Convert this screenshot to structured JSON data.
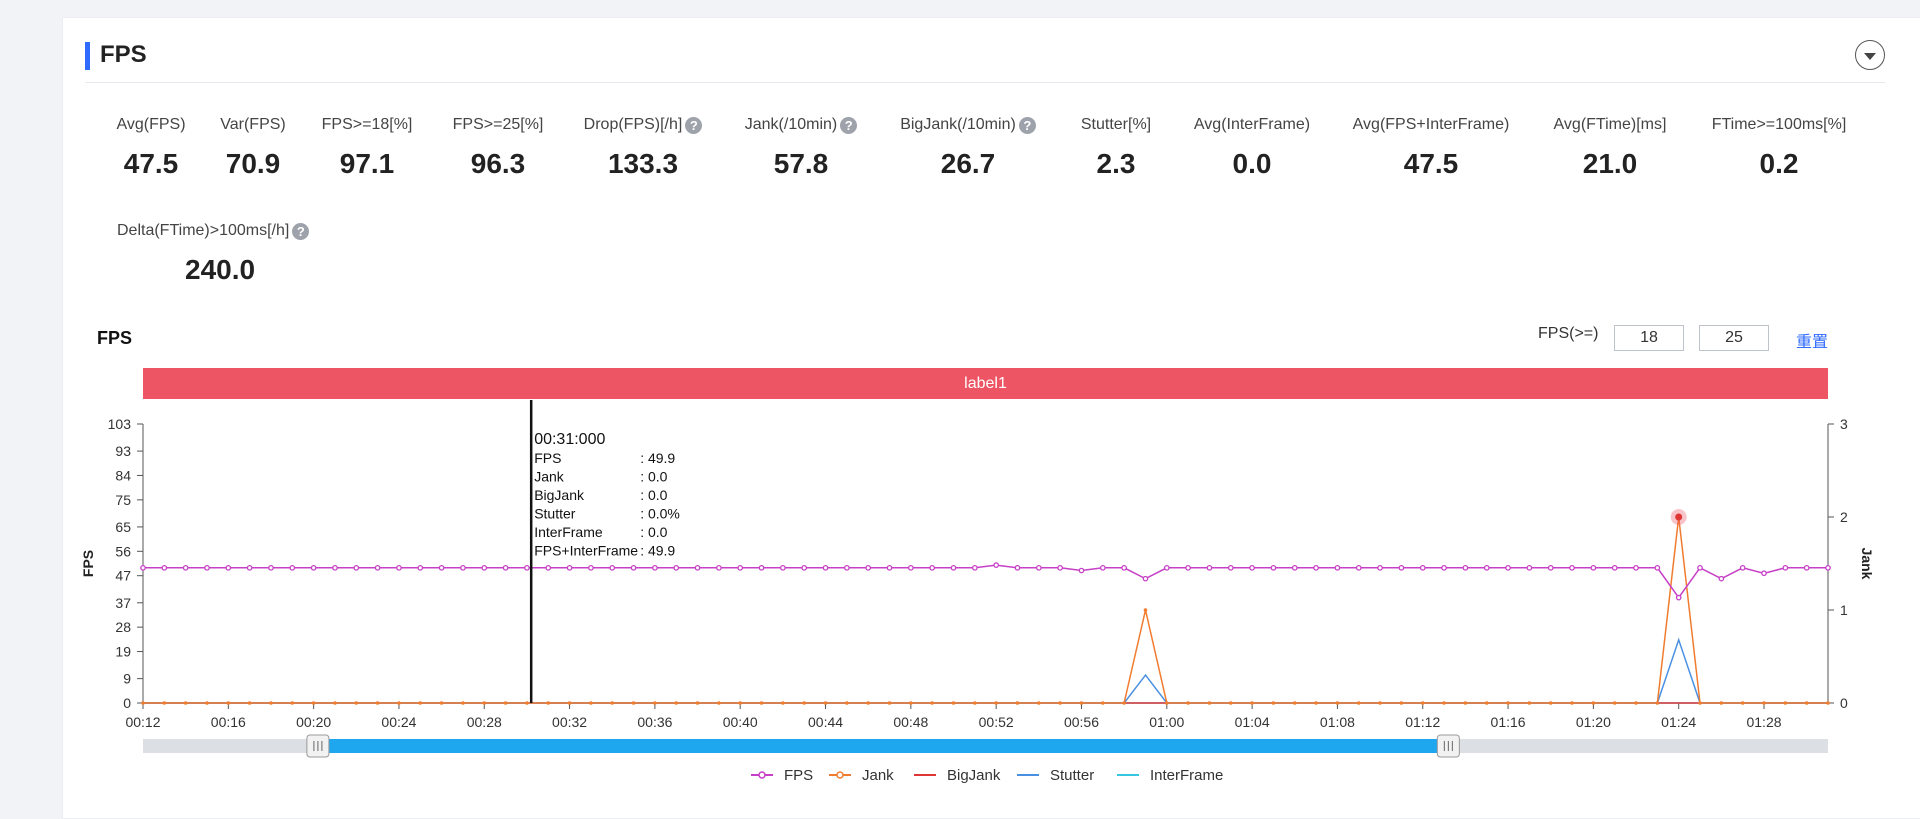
{
  "section": {
    "title": "FPS"
  },
  "metrics": [
    {
      "label": "Avg(FPS)",
      "value": "47.5",
      "help": false
    },
    {
      "label": "Var(FPS)",
      "value": "70.9",
      "help": false
    },
    {
      "label": "FPS>=18[%]",
      "value": "97.1",
      "help": false
    },
    {
      "label": "FPS>=25[%]",
      "value": "96.3",
      "help": false
    },
    {
      "label": "Drop(FPS)[/h]",
      "value": "133.3",
      "help": true
    },
    {
      "label": "Jank(/10min)",
      "value": "57.8",
      "help": true
    },
    {
      "label": "BigJank(/10min)",
      "value": "26.7",
      "help": true
    },
    {
      "label": "Stutter[%]",
      "value": "2.3",
      "help": false
    },
    {
      "label": "Avg(InterFrame)",
      "value": "0.0",
      "help": false
    },
    {
      "label": "Avg(FPS+InterFrame)",
      "value": "47.5",
      "help": false
    },
    {
      "label": "Avg(FTime)[ms]",
      "value": "21.0",
      "help": false
    },
    {
      "label": "FTime>=100ms[%]",
      "value": "0.2",
      "help": false
    },
    {
      "label": "Delta(FTime)>100ms[/h]",
      "value": "240.0",
      "help": true
    }
  ],
  "chart_section": {
    "title": "FPS",
    "threshold_label": "FPS(>=)",
    "threshold_1": "18",
    "threshold_2": "25",
    "reset_label": "重置",
    "band_label": "label1"
  },
  "tooltip": {
    "time": "00:31:000",
    "rows": [
      {
        "name": "FPS",
        "value": ": 49.9"
      },
      {
        "name": "Jank",
        "value": ": 0.0"
      },
      {
        "name": "BigJank",
        "value": ": 0.0"
      },
      {
        "name": "Stutter",
        "value": ": 0.0%"
      },
      {
        "name": "InterFrame",
        "value": ": 0.0"
      },
      {
        "name": "FPS+InterFrame",
        "value": ": 49.9"
      }
    ]
  },
  "colors": {
    "fps": "#c63fc6",
    "jank": "#f07c30",
    "bigjank": "#e03535",
    "stutter": "#4a90e2",
    "interframe": "#36c6e0",
    "band": "#ed5565",
    "accent": "#2f6bff",
    "slider": "#1ea6ee"
  },
  "chart_data": {
    "type": "line",
    "ylabel": "FPS",
    "y2label": "Jank",
    "yticks": [
      "0",
      "9",
      "19",
      "28",
      "37",
      "47",
      "56",
      "65",
      "75",
      "84",
      "93",
      "103"
    ],
    "y2ticks": [
      "0",
      "1",
      "2",
      "3"
    ],
    "ylim": [
      0,
      103
    ],
    "y2lim": [
      0,
      3
    ],
    "xticks": [
      "00:12",
      "00:16",
      "00:20",
      "00:24",
      "00:28",
      "00:32",
      "00:36",
      "00:40",
      "00:44",
      "00:48",
      "00:52",
      "00:56",
      "01:00",
      "01:04",
      "01:08",
      "01:12",
      "01:16",
      "01:20",
      "01:24",
      "01:28"
    ],
    "x_range_seconds": [
      12,
      91
    ],
    "grid": false,
    "legend_position": "bottom",
    "cursor_time_seconds": 30.2,
    "series": [
      {
        "name": "FPS",
        "axis": "left",
        "points": [
          [
            12,
            49.9
          ],
          [
            13,
            49.9
          ],
          [
            14,
            49.9
          ],
          [
            15,
            49.9
          ],
          [
            16,
            49.9
          ],
          [
            17,
            49.9
          ],
          [
            18,
            49.9
          ],
          [
            19,
            49.9
          ],
          [
            20,
            49.9
          ],
          [
            21,
            49.9
          ],
          [
            22,
            49.9
          ],
          [
            23,
            49.9
          ],
          [
            24,
            49.9
          ],
          [
            25,
            49.9
          ],
          [
            26,
            49.9
          ],
          [
            27,
            49.9
          ],
          [
            28,
            49.9
          ],
          [
            29,
            49.9
          ],
          [
            30,
            49.9
          ],
          [
            31,
            49.9
          ],
          [
            32,
            49.9
          ],
          [
            33,
            49.9
          ],
          [
            34,
            49.9
          ],
          [
            35,
            49.9
          ],
          [
            36,
            49.9
          ],
          [
            37,
            49.9
          ],
          [
            38,
            49.9
          ],
          [
            39,
            49.9
          ],
          [
            40,
            49.9
          ],
          [
            41,
            49.9
          ],
          [
            42,
            49.9
          ],
          [
            43,
            49.9
          ],
          [
            44,
            49.9
          ],
          [
            45,
            49.9
          ],
          [
            46,
            49.9
          ],
          [
            47,
            49.9
          ],
          [
            48,
            49.9
          ],
          [
            49,
            49.9
          ],
          [
            50,
            49.9
          ],
          [
            51,
            49.9
          ],
          [
            52,
            50.9
          ],
          [
            53,
            49.9
          ],
          [
            54,
            49.9
          ],
          [
            55,
            49.9
          ],
          [
            56,
            48.9
          ],
          [
            57,
            49.9
          ],
          [
            58,
            49.9
          ],
          [
            59,
            45.9
          ],
          [
            60,
            49.9
          ],
          [
            61,
            49.9
          ],
          [
            62,
            49.9
          ],
          [
            63,
            49.9
          ],
          [
            64,
            49.9
          ],
          [
            65,
            49.9
          ],
          [
            66,
            49.9
          ],
          [
            67,
            49.9
          ],
          [
            68,
            49.9
          ],
          [
            69,
            49.9
          ],
          [
            70,
            49.9
          ],
          [
            71,
            49.9
          ],
          [
            72,
            49.9
          ],
          [
            73,
            49.9
          ],
          [
            74,
            49.9
          ],
          [
            75,
            49.9
          ],
          [
            76,
            49.9
          ],
          [
            77,
            49.9
          ],
          [
            78,
            49.9
          ],
          [
            79,
            49.9
          ],
          [
            80,
            49.9
          ],
          [
            81,
            49.9
          ],
          [
            82,
            49.9
          ],
          [
            83,
            49.9
          ],
          [
            84,
            38.9
          ],
          [
            85,
            49.9
          ],
          [
            86,
            45.9
          ],
          [
            87,
            49.9
          ],
          [
            88,
            47.9
          ],
          [
            89,
            49.9
          ],
          [
            90,
            49.9
          ],
          [
            91,
            49.9
          ]
        ]
      },
      {
        "name": "Jank",
        "axis": "right",
        "points": [
          [
            12,
            0
          ],
          [
            58,
            0
          ],
          [
            59,
            1
          ],
          [
            60,
            0
          ],
          [
            83,
            0
          ],
          [
            84,
            2
          ],
          [
            85,
            0
          ],
          [
            91,
            0
          ]
        ]
      },
      {
        "name": "BigJank",
        "axis": "right",
        "points": [
          [
            12,
            0
          ],
          [
            91,
            0
          ]
        ]
      },
      {
        "name": "Stutter",
        "axis": "right",
        "points": [
          [
            12,
            0
          ],
          [
            58,
            0
          ],
          [
            59,
            0.3
          ],
          [
            60,
            0
          ],
          [
            83,
            0
          ],
          [
            84,
            0.68
          ],
          [
            85,
            0
          ],
          [
            91,
            0
          ]
        ]
      },
      {
        "name": "InterFrame",
        "axis": "right",
        "points": [
          [
            12,
            0
          ],
          [
            91,
            0
          ]
        ]
      }
    ],
    "highlight_point": {
      "series": "Jank",
      "x": 84,
      "y": 2
    },
    "slider_range_seconds": [
      20.2,
      73.2
    ]
  }
}
